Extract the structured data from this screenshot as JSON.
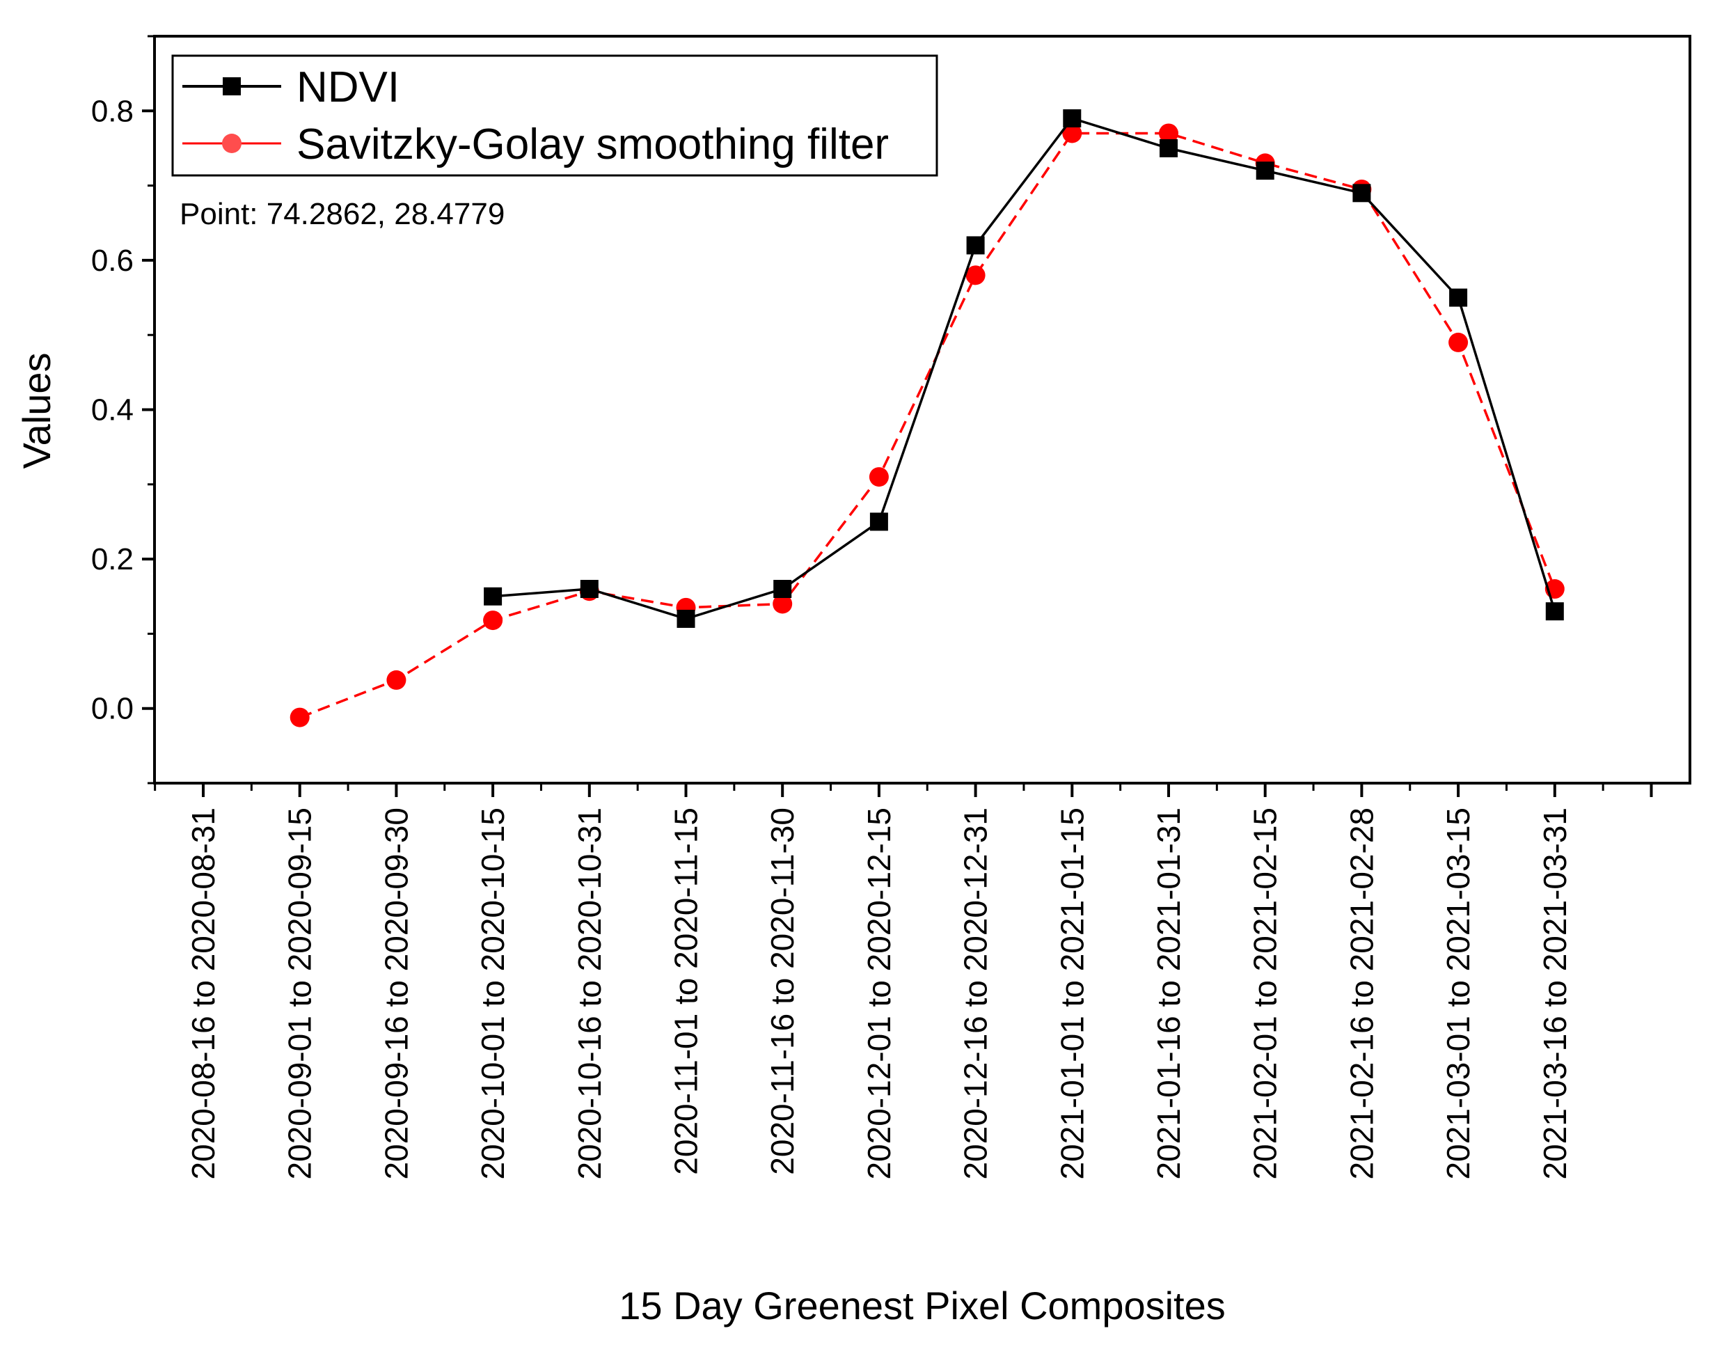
{
  "chart_data": {
    "type": "line",
    "title": "",
    "xlabel": "15 Day Greenest Pixel Composites",
    "ylabel": "Values",
    "ylim": [
      -0.1,
      0.9
    ],
    "yticks": [
      0.0,
      0.2,
      0.4,
      0.6,
      0.8
    ],
    "ytick_labels": [
      "0.0",
      "0.2",
      "0.4",
      "0.6",
      "0.8"
    ],
    "categories": [
      "2020-08-16 to 2020-08-31",
      "2020-09-01 to 2020-09-15",
      "2020-09-16 to 2020-09-30",
      "2020-10-01 to 2020-10-15",
      "2020-10-16 to 2020-10-31",
      "2020-11-01 to 2020-11-15",
      "2020-11-16 to 2020-11-30",
      "2020-12-01 to 2020-12-15",
      "2020-12-16 to 2020-12-31",
      "2021-01-01 to 2021-01-15",
      "2021-01-16 to 2021-01-31",
      "2021-02-01 to 2021-02-15",
      "2021-02-16 to 2021-02-28",
      "2021-03-01 to 2021-03-15",
      "2021-03-16 to 2021-03-31"
    ],
    "series": [
      {
        "name": "NDVI",
        "color": "#000000",
        "marker": "square",
        "line": "solid",
        "values": [
          null,
          null,
          null,
          0.15,
          0.16,
          0.12,
          0.16,
          0.25,
          0.62,
          0.79,
          0.75,
          0.72,
          0.69,
          0.55,
          0.13
        ]
      },
      {
        "name": "Savitzky-Golay smoothing filter",
        "color": "#ff0000",
        "marker": "circle",
        "line": "dashed",
        "values": [
          null,
          -0.012,
          0.038,
          0.118,
          0.157,
          0.135,
          0.14,
          0.31,
          0.58,
          0.77,
          0.77,
          0.73,
          0.695,
          0.49,
          0.16
        ]
      }
    ],
    "legend": {
      "position": "top-left",
      "entries": [
        "NDVI",
        "Savitzky-Golay smoothing filter"
      ]
    },
    "annotation": "Point: 74.2862, 28.4779",
    "grid": false
  }
}
